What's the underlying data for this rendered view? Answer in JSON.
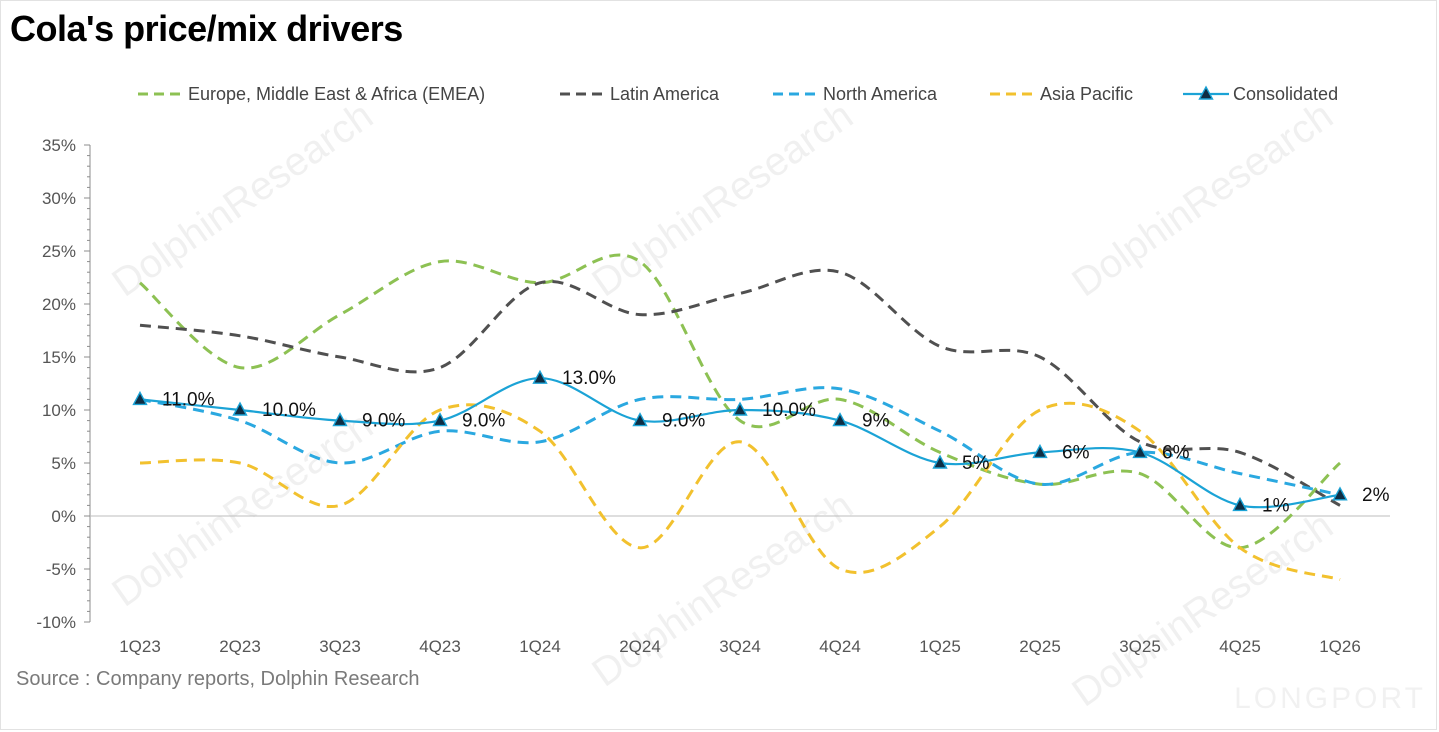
{
  "title": "Cola's price/mix drivers",
  "source": "Source : Company reports, Dolphin Research",
  "watermark": "DolphinResearch",
  "brand_watermark": "LONGPORT",
  "chart_data": {
    "type": "line",
    "x": [
      "1Q23",
      "2Q23",
      "3Q23",
      "4Q23",
      "1Q24",
      "2Q24",
      "3Q24",
      "4Q24",
      "1Q25",
      "2Q25",
      "3Q25",
      "4Q25",
      "1Q26"
    ],
    "ylim": [
      -10,
      35
    ],
    "yticks": [
      -10,
      -5,
      0,
      5,
      10,
      15,
      20,
      25,
      30,
      35
    ],
    "ytick_labels": [
      "-10%",
      "-5%",
      "0%",
      "5%",
      "10%",
      "15%",
      "20%",
      "25%",
      "30%",
      "35%"
    ],
    "grid": false,
    "legend_position": "top",
    "series": [
      {
        "name": "Europe, Middle East & Africa (EMEA)",
        "color": "#8dc153",
        "style": "dashed",
        "values": [
          22,
          14,
          19,
          24,
          22,
          24,
          9,
          11,
          6,
          3,
          4,
          -3,
          5
        ]
      },
      {
        "name": "Latin America",
        "color": "#505050",
        "style": "dashed",
        "values": [
          18,
          17,
          15,
          14,
          22,
          19,
          21,
          23,
          16,
          15,
          7,
          6,
          1
        ]
      },
      {
        "name": "North America",
        "color": "#2aa8e0",
        "style": "dashed",
        "values": [
          11,
          9,
          5,
          8,
          7,
          11,
          11,
          12,
          8,
          3,
          6,
          4,
          2
        ]
      },
      {
        "name": "Asia Pacific",
        "color": "#f2c12e",
        "style": "dashed",
        "values": [
          5,
          5,
          1,
          10,
          8,
          -3,
          7,
          -5,
          -1,
          10,
          8,
          -3,
          -6
        ]
      },
      {
        "name": "Consolidated",
        "color": "#1ba3d6",
        "style": "solid-marker",
        "values": [
          11,
          10,
          9,
          9,
          13,
          9,
          10,
          9,
          5,
          6,
          6,
          1,
          2
        ],
        "labels": [
          "11.0%",
          "10.0%",
          "9.0%",
          "9.0%",
          "13.0%",
          "9.0%",
          "10.0%",
          "9%",
          "5%",
          "6%",
          "6%",
          "1%",
          "2%"
        ]
      }
    ]
  }
}
